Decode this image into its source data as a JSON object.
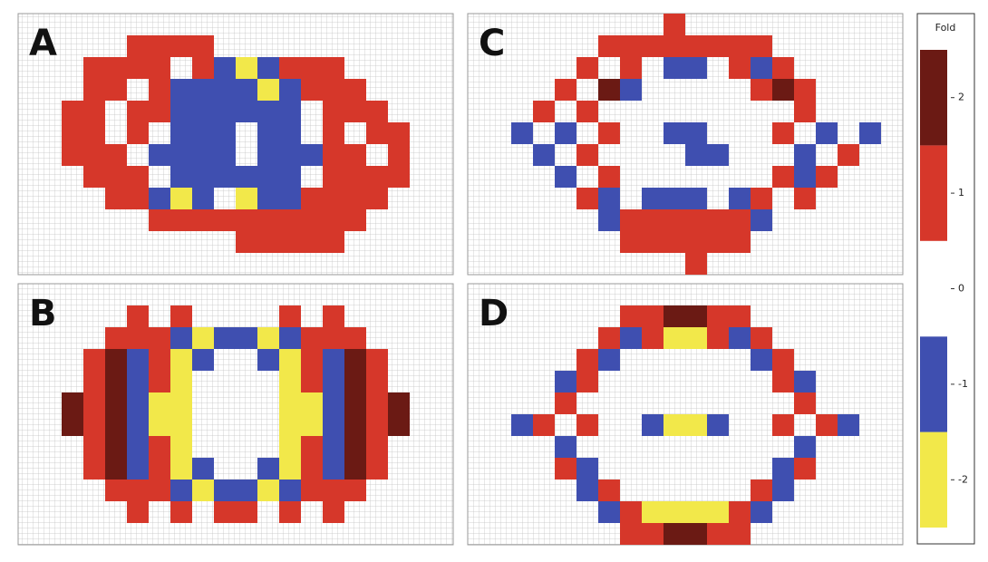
{
  "chart_data": {
    "type": "heatmap",
    "legend": {
      "title": "Fold",
      "zlim": [
        -2.5,
        2.5
      ],
      "zticks": [
        -2,
        -1,
        0,
        1,
        2
      ],
      "colors": [
        "#f2e84a",
        "#3f4fb0",
        "#ffffff",
        "#d6372a",
        "#6b1a14"
      ]
    },
    "panels": [
      {
        "label": "A",
        "z": [
          [
            0,
            0,
            0,
            0,
            0,
            0,
            0,
            0,
            0,
            0,
            0,
            0,
            0,
            0,
            0,
            0,
            0,
            0,
            0,
            0
          ],
          [
            0,
            0,
            0,
            0,
            0,
            1,
            1,
            1,
            1,
            0,
            0,
            0,
            0,
            0,
            0,
            0,
            0,
            0,
            0,
            0
          ],
          [
            0,
            0,
            0,
            1,
            1,
            1,
            1,
            0,
            1,
            -1,
            -2,
            -1,
            1,
            1,
            1,
            0,
            0,
            0,
            0,
            0
          ],
          [
            0,
            0,
            0,
            1,
            1,
            0,
            1,
            -1,
            -1,
            -1,
            -1,
            -2,
            -1,
            1,
            1,
            1,
            0,
            0,
            0,
            0
          ],
          [
            0,
            0,
            1,
            1,
            0,
            1,
            1,
            -1,
            -1,
            -1,
            -1,
            -1,
            -1,
            0,
            1,
            1,
            1,
            0,
            0,
            0
          ],
          [
            0,
            0,
            1,
            1,
            0,
            1,
            0,
            -1,
            -1,
            -1,
            0,
            -1,
            -1,
            0,
            1,
            0,
            1,
            1,
            0,
            0
          ],
          [
            0,
            0,
            1,
            1,
            1,
            0,
            -1,
            -1,
            -1,
            -1,
            0,
            -1,
            -1,
            -1,
            1,
            1,
            0,
            1,
            0,
            0
          ],
          [
            0,
            0,
            0,
            1,
            1,
            1,
            0,
            -1,
            -1,
            -1,
            -1,
            -1,
            -1,
            0,
            1,
            1,
            1,
            1,
            0,
            0
          ],
          [
            0,
            0,
            0,
            0,
            1,
            1,
            -1,
            -2,
            -1,
            0,
            -2,
            -1,
            -1,
            1,
            1,
            1,
            1,
            0,
            0,
            0
          ],
          [
            0,
            0,
            0,
            0,
            0,
            0,
            1,
            1,
            1,
            1,
            1,
            1,
            1,
            1,
            1,
            1,
            0,
            0,
            0,
            0
          ],
          [
            0,
            0,
            0,
            0,
            0,
            0,
            0,
            0,
            0,
            0,
            1,
            1,
            1,
            1,
            1,
            0,
            0,
            0,
            0,
            0
          ],
          [
            0,
            0,
            0,
            0,
            0,
            0,
            0,
            0,
            0,
            0,
            0,
            0,
            0,
            0,
            0,
            0,
            0,
            0,
            0,
            0
          ]
        ]
      },
      {
        "label": "B",
        "z": [
          [
            0,
            0,
            0,
            0,
            0,
            0,
            0,
            0,
            0,
            0,
            0,
            0,
            0,
            0,
            0,
            0,
            0,
            0,
            0,
            0
          ],
          [
            0,
            0,
            0,
            0,
            0,
            1,
            0,
            1,
            0,
            0,
            0,
            0,
            1,
            0,
            1,
            0,
            0,
            0,
            0,
            0
          ],
          [
            0,
            0,
            0,
            0,
            1,
            1,
            1,
            -1,
            -2,
            -1,
            -1,
            -2,
            -1,
            1,
            1,
            1,
            0,
            0,
            0,
            0
          ],
          [
            0,
            0,
            0,
            1,
            2,
            -1,
            1,
            -2,
            -1,
            0,
            0,
            -1,
            -2,
            1,
            -1,
            2,
            1,
            0,
            0,
            0
          ],
          [
            0,
            0,
            0,
            1,
            2,
            -1,
            1,
            -2,
            0,
            0,
            0,
            0,
            -2,
            1,
            -1,
            2,
            1,
            0,
            0,
            0
          ],
          [
            0,
            0,
            2,
            1,
            2,
            -1,
            -2,
            -2,
            0,
            0,
            0,
            0,
            -2,
            -2,
            -1,
            2,
            1,
            2,
            0,
            0
          ],
          [
            0,
            0,
            2,
            1,
            2,
            -1,
            -2,
            -2,
            0,
            0,
            0,
            0,
            -2,
            -2,
            -1,
            2,
            1,
            2,
            0,
            0
          ],
          [
            0,
            0,
            0,
            1,
            2,
            -1,
            1,
            -2,
            0,
            0,
            0,
            0,
            -2,
            1,
            -1,
            2,
            1,
            0,
            0,
            0
          ],
          [
            0,
            0,
            0,
            1,
            2,
            -1,
            1,
            -2,
            -1,
            0,
            0,
            -1,
            -2,
            1,
            -1,
            2,
            1,
            0,
            0,
            0
          ],
          [
            0,
            0,
            0,
            0,
            1,
            1,
            1,
            -1,
            -2,
            -1,
            -1,
            -2,
            -1,
            1,
            1,
            1,
            0,
            0,
            0,
            0
          ],
          [
            0,
            0,
            0,
            0,
            0,
            1,
            0,
            1,
            0,
            1,
            1,
            0,
            1,
            0,
            1,
            0,
            0,
            0,
            0,
            0
          ],
          [
            0,
            0,
            0,
            0,
            0,
            0,
            0,
            0,
            0,
            0,
            0,
            0,
            0,
            0,
            0,
            0,
            0,
            0,
            0,
            0
          ]
        ]
      },
      {
        "label": "C",
        "z": [
          [
            0,
            0,
            0,
            0,
            0,
            0,
            0,
            0,
            0,
            1,
            0,
            0,
            0,
            0,
            0,
            0,
            0,
            0,
            0,
            0
          ],
          [
            0,
            0,
            0,
            0,
            0,
            0,
            1,
            1,
            1,
            1,
            1,
            1,
            1,
            1,
            0,
            0,
            0,
            0,
            0,
            0
          ],
          [
            0,
            0,
            0,
            0,
            0,
            1,
            0,
            1,
            0,
            -1,
            -1,
            0,
            1,
            -1,
            1,
            0,
            0,
            0,
            0,
            0
          ],
          [
            0,
            0,
            0,
            0,
            1,
            0,
            2,
            -1,
            0,
            0,
            0,
            0,
            0,
            1,
            2,
            1,
            0,
            0,
            0,
            0
          ],
          [
            0,
            0,
            0,
            1,
            0,
            1,
            0,
            0,
            0,
            0,
            0,
            0,
            0,
            0,
            0,
            1,
            0,
            0,
            0,
            0
          ],
          [
            0,
            0,
            -1,
            0,
            -1,
            0,
            1,
            0,
            0,
            -1,
            -1,
            0,
            0,
            0,
            1,
            0,
            -1,
            0,
            -1,
            0
          ],
          [
            0,
            0,
            0,
            -1,
            0,
            1,
            0,
            0,
            0,
            0,
            -1,
            -1,
            0,
            0,
            0,
            -1,
            0,
            1,
            0,
            0
          ],
          [
            0,
            0,
            0,
            0,
            -1,
            0,
            1,
            0,
            0,
            0,
            0,
            0,
            0,
            0,
            1,
            -1,
            1,
            0,
            0,
            0
          ],
          [
            0,
            0,
            0,
            0,
            0,
            1,
            -1,
            0,
            -1,
            -1,
            -1,
            0,
            -1,
            1,
            0,
            1,
            0,
            0,
            0,
            0
          ],
          [
            0,
            0,
            0,
            0,
            0,
            0,
            -1,
            1,
            1,
            1,
            1,
            1,
            1,
            -1,
            0,
            0,
            0,
            0,
            0,
            0
          ],
          [
            0,
            0,
            0,
            0,
            0,
            0,
            0,
            1,
            1,
            1,
            1,
            1,
            1,
            0,
            0,
            0,
            0,
            0,
            0,
            0
          ],
          [
            0,
            0,
            0,
            0,
            0,
            0,
            0,
            0,
            0,
            0,
            1,
            0,
            0,
            0,
            0,
            0,
            0,
            0,
            0,
            0
          ]
        ]
      },
      {
        "label": "D",
        "z": [
          [
            0,
            0,
            0,
            0,
            0,
            0,
            0,
            0,
            0,
            0,
            0,
            0,
            0,
            0,
            0,
            0,
            0,
            0,
            0,
            0
          ],
          [
            0,
            0,
            0,
            0,
            0,
            0,
            0,
            1,
            1,
            2,
            2,
            1,
            1,
            0,
            0,
            0,
            0,
            0,
            0,
            0
          ],
          [
            0,
            0,
            0,
            0,
            0,
            0,
            1,
            -1,
            1,
            -2,
            -2,
            1,
            -1,
            1,
            0,
            0,
            0,
            0,
            0,
            0
          ],
          [
            0,
            0,
            0,
            0,
            0,
            1,
            -1,
            0,
            0,
            0,
            0,
            0,
            0,
            -1,
            1,
            0,
            0,
            0,
            0,
            0
          ],
          [
            0,
            0,
            0,
            0,
            -1,
            1,
            0,
            0,
            0,
            0,
            0,
            0,
            0,
            0,
            1,
            -1,
            0,
            0,
            0,
            0
          ],
          [
            0,
            0,
            0,
            0,
            1,
            0,
            0,
            0,
            0,
            0,
            0,
            0,
            0,
            0,
            0,
            1,
            0,
            0,
            0,
            0
          ],
          [
            0,
            0,
            -1,
            1,
            0,
            1,
            0,
            0,
            -1,
            -2,
            -2,
            -1,
            0,
            0,
            1,
            0,
            1,
            -1,
            0,
            0
          ],
          [
            0,
            0,
            0,
            0,
            -1,
            0,
            0,
            0,
            0,
            0,
            0,
            0,
            0,
            0,
            0,
            -1,
            0,
            0,
            0,
            0
          ],
          [
            0,
            0,
            0,
            0,
            1,
            -1,
            0,
            0,
            0,
            0,
            0,
            0,
            0,
            0,
            -1,
            1,
            0,
            0,
            0,
            0
          ],
          [
            0,
            0,
            0,
            0,
            0,
            -1,
            1,
            0,
            0,
            0,
            0,
            0,
            0,
            1,
            -1,
            0,
            0,
            0,
            0,
            0
          ],
          [
            0,
            0,
            0,
            0,
            0,
            0,
            -1,
            1,
            -2,
            -2,
            -2,
            -2,
            1,
            -1,
            0,
            0,
            0,
            0,
            0,
            0
          ],
          [
            0,
            0,
            0,
            0,
            0,
            0,
            0,
            1,
            1,
            2,
            2,
            1,
            1,
            0,
            0,
            0,
            0,
            0,
            0,
            0
          ]
        ]
      }
    ]
  }
}
